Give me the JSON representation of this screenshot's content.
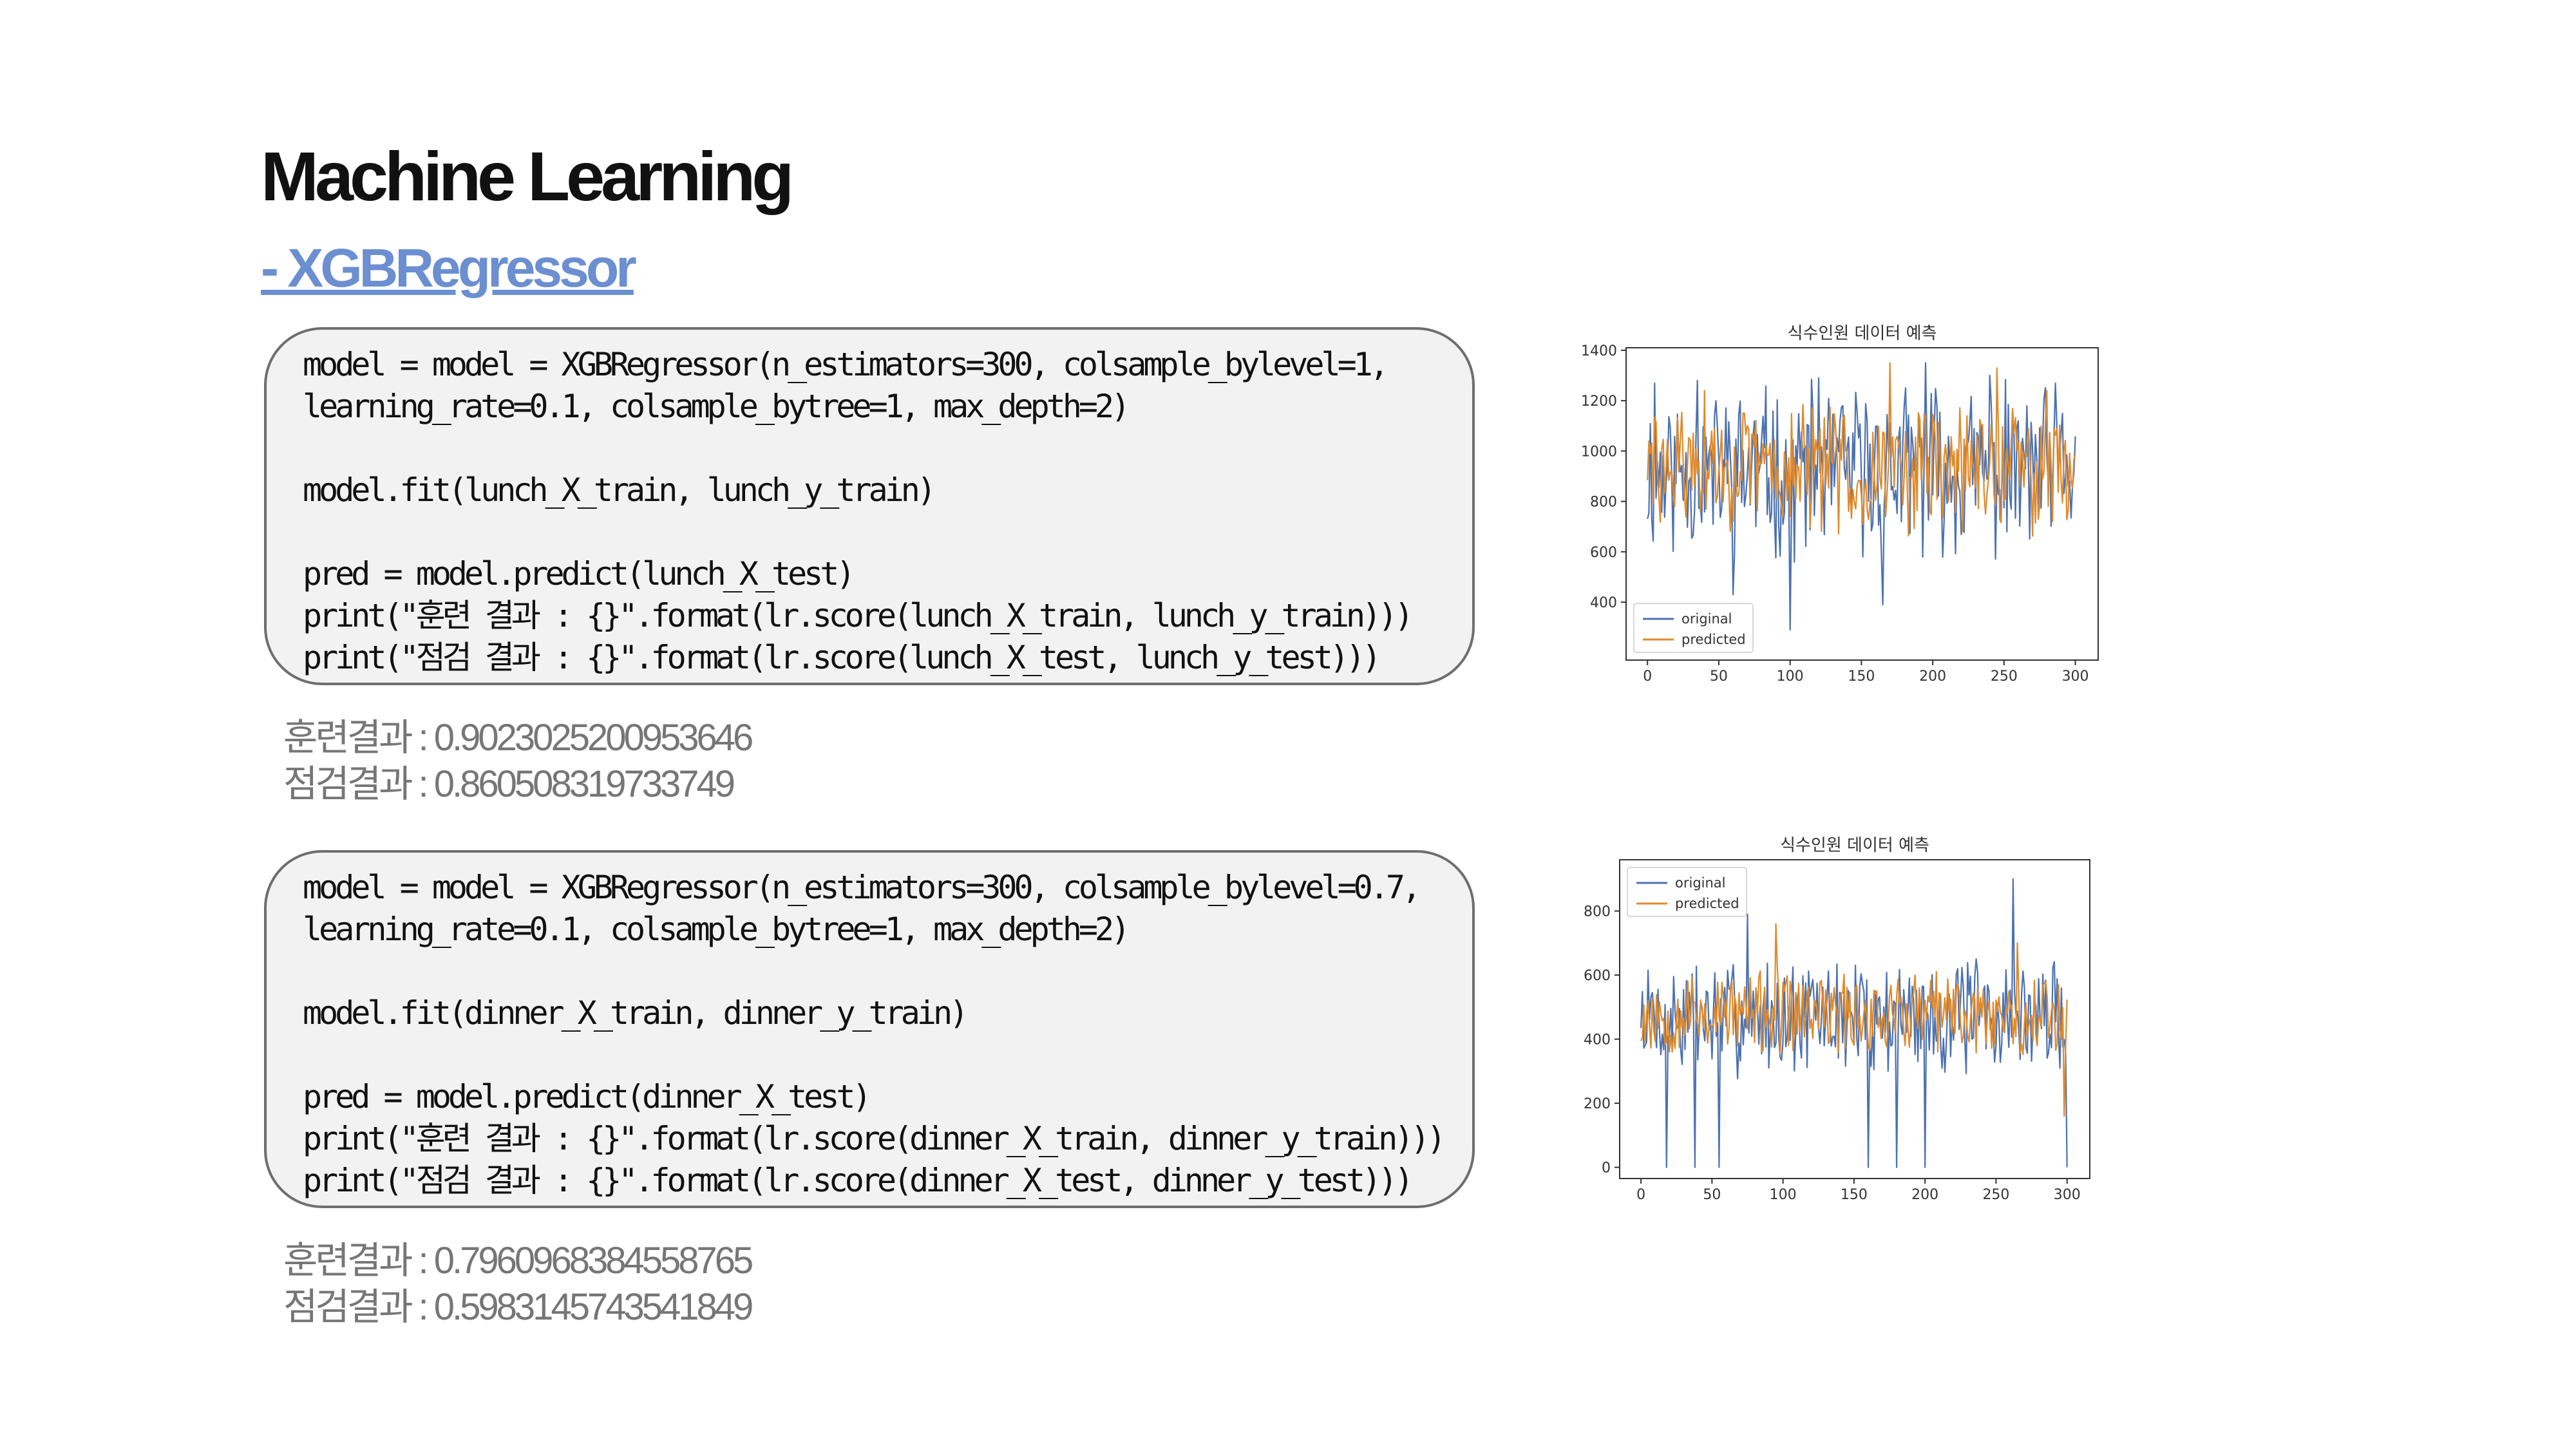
{
  "header": {
    "title": "Machine Learning",
    "subtitle": "- XGBRegressor"
  },
  "lunch": {
    "code_lines": [
      "model = model = XGBRegressor(n_estimators=300, colsample_bylevel=1,",
      "learning_rate=0.1, colsample_bytree=1, max_depth=2)",
      "",
      "model.fit(lunch_X_train, lunch_y_train)",
      "",
      "pred = model.predict(lunch_X_test)",
      "print(\"훈련 결과 : {}\".format(lr.score(lunch_X_train, lunch_y_train)))",
      "print(\"점검 결과 : {}\".format(lr.score(lunch_X_test, lunch_y_test)))"
    ],
    "results": {
      "train": "훈련결과 : 0.9023025200953646",
      "test": "점검결과 : 0.860508319733749"
    }
  },
  "dinner": {
    "code_lines": [
      "model = model = XGBRegressor(n_estimators=300, colsample_bylevel=0.7,",
      "learning_rate=0.1, colsample_bytree=1, max_depth=2)",
      "",
      "model.fit(dinner_X_train, dinner_y_train)",
      "",
      "pred = model.predict(dinner_X_test)",
      "print(\"훈련 결과 : {}\".format(lr.score(dinner_X_train, dinner_y_train)))",
      "print(\"점검 결과 : {}\".format(lr.score(dinner_X_test, dinner_y_test)))"
    ],
    "results": {
      "train": "훈련결과 : 0.7960968384558765",
      "test": "점검결과 : 0.5983145743541849"
    }
  },
  "colors": {
    "original": "#4c72b0",
    "predicted": "#e08a2c",
    "title_accent": "#6b8fd0"
  },
  "chart_data": [
    {
      "type": "line",
      "title": "식수인원 데이터 예측",
      "xlabel": "",
      "ylabel": "",
      "xlim": [
        -15,
        316
      ],
      "ylim": [
        170,
        1410
      ],
      "xticks": [
        0,
        50,
        100,
        150,
        200,
        250,
        300
      ],
      "yticks": [
        400,
        600,
        800,
        1000,
        1200,
        1400
      ],
      "legend_position": "lower-left",
      "grid": false,
      "n_points": 301,
      "series": [
        {
          "name": "original",
          "color": "#4c72b0",
          "base": 920,
          "spread": 280,
          "seed": 11,
          "spikes": [
            [
              100,
              290
            ],
            [
              165,
              390
            ],
            [
              60,
              430
            ],
            [
              35,
              1280
            ],
            [
              5,
              1270
            ],
            [
              120,
              1290
            ],
            [
              195,
              1350
            ],
            [
              240,
              1300
            ]
          ]
        },
        {
          "name": "predicted",
          "color": "#e08a2c",
          "base": 930,
          "spread": 210,
          "seed": 29,
          "spikes": [
            [
              170,
              1350
            ],
            [
              245,
              1330
            ],
            [
              280,
              1240
            ],
            [
              40,
              1240
            ]
          ]
        }
      ]
    },
    {
      "type": "line",
      "title": "식수인원 데이터 예측",
      "xlabel": "",
      "ylabel": "",
      "xlim": [
        -15,
        316
      ],
      "ylim": [
        -35,
        960
      ],
      "xticks": [
        0,
        50,
        100,
        150,
        200,
        250,
        300
      ],
      "yticks": [
        0,
        200,
        400,
        600,
        800
      ],
      "legend_position": "top-left",
      "grid": false,
      "n_points": 301,
      "series": [
        {
          "name": "original",
          "color": "#4c72b0",
          "base": 470,
          "spread": 150,
          "seed": 7,
          "spikes": [
            [
              262,
              900
            ],
            [
              18,
              0
            ],
            [
              38,
              0
            ],
            [
              55,
              0
            ],
            [
              160,
              0
            ],
            [
              180,
              0
            ],
            [
              200,
              0
            ],
            [
              300,
              0
            ],
            [
              75,
              790
            ]
          ]
        },
        {
          "name": "predicted",
          "color": "#e08a2c",
          "base": 480,
          "spread": 110,
          "seed": 53,
          "spikes": [
            [
              95,
              760
            ],
            [
              265,
              700
            ],
            [
              298,
              160
            ]
          ]
        }
      ]
    }
  ]
}
